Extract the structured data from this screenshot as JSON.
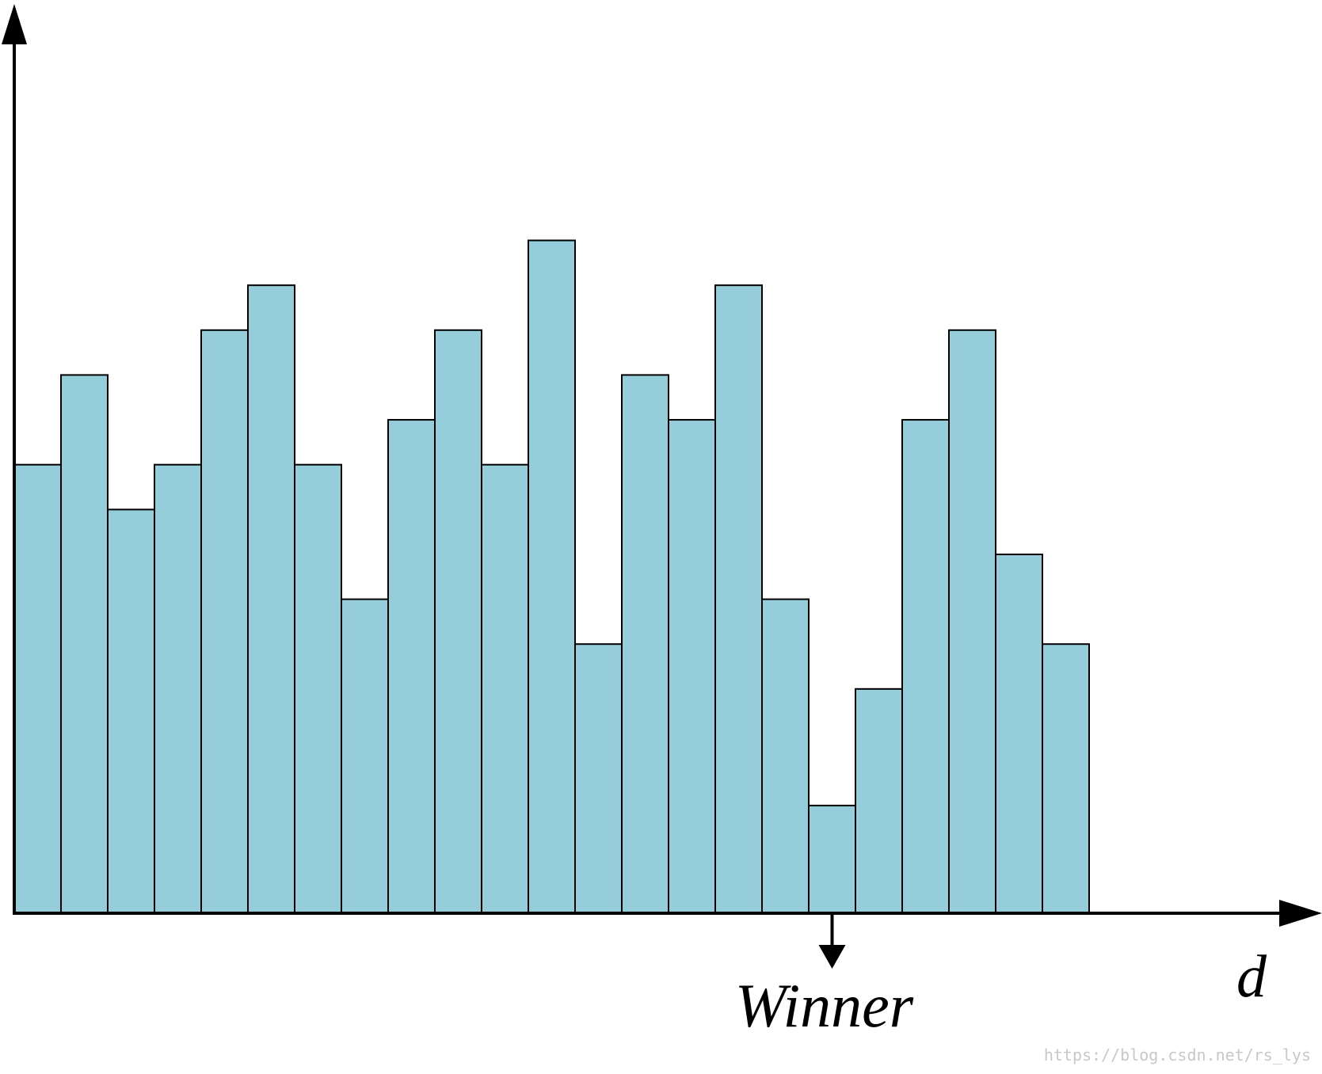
{
  "chart_data": {
    "type": "bar",
    "values": [
      10,
      12,
      9,
      10,
      13,
      14,
      10,
      7,
      11,
      13,
      10,
      15,
      6,
      12,
      11,
      14,
      7,
      2.4,
      5,
      11,
      13,
      8,
      6
    ],
    "ylim": [
      0,
      19
    ],
    "xlabel": "d",
    "ylabel": "",
    "bar_color": "#95cddb",
    "edge_color": "#000000",
    "grid": false,
    "annotation": {
      "text": "Winner",
      "bar_index": 17
    }
  },
  "watermark": "https://blog.csdn.net/rs_lys"
}
